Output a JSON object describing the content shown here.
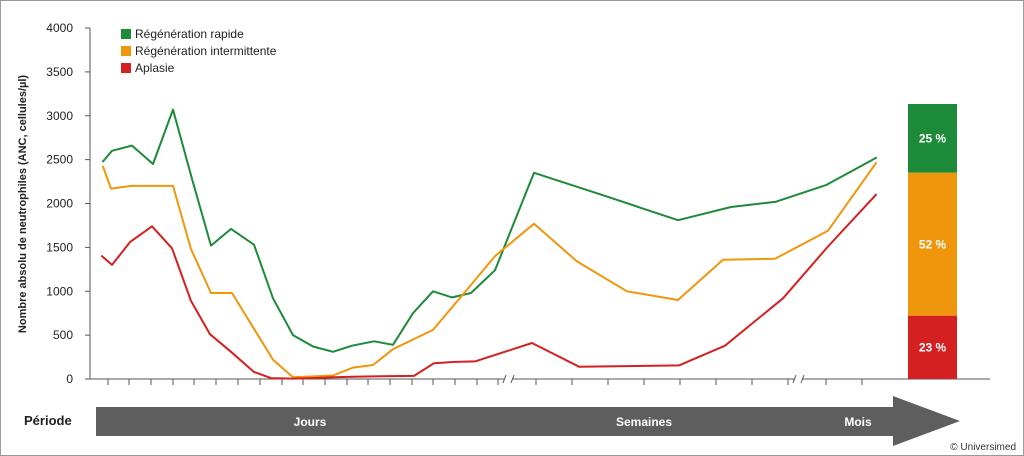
{
  "chart_data": {
    "type": "line",
    "ylabel": "Nombre absolu de neutrophiles (ANC, cellules/µl)",
    "ylim": [
      0,
      4000
    ],
    "yticks": [
      0,
      500,
      1000,
      1500,
      2000,
      2500,
      3000,
      3500,
      4000
    ],
    "grid": false,
    "legend_position": "top-left",
    "series": [
      {
        "name": "Régénération rapide",
        "color": "#1d8a3a",
        "values": [
          2480,
          2600,
          2660,
          2450,
          3070,
          2280,
          1520,
          1710,
          1530,
          920,
          500,
          370,
          310,
          380,
          430,
          390,
          750,
          1000,
          930,
          980,
          1240,
          2350,
          2090,
          1810,
          1960,
          2020,
          2210,
          2520
        ]
      },
      {
        "name": "Régénération intermittente",
        "color": "#f0960c",
        "values": [
          2420,
          2170,
          2200,
          2200,
          2200,
          1480,
          980,
          980,
          590,
          220,
          20,
          30,
          40,
          130,
          160,
          340,
          450,
          560,
          830,
          1100,
          1400,
          1770,
          1340,
          1000,
          900,
          1360,
          1370,
          1690,
          2460
        ]
      },
      {
        "name": "Aplasie",
        "color": "#d42020",
        "values": [
          1400,
          1300,
          1560,
          1740,
          1490,
          890,
          510,
          300,
          80,
          10,
          5,
          10,
          20,
          25,
          30,
          35,
          180,
          195,
          200,
          410,
          140,
          155,
          380,
          920,
          1510,
          2100
        ]
      }
    ],
    "stacked_bar": {
      "segments": [
        {
          "label": "25 %",
          "value": 25,
          "color": "#1d8a3a"
        },
        {
          "label": "52 %",
          "value": 52,
          "color": "#f0960c"
        },
        {
          "label": "23 %",
          "value": 23,
          "color": "#d42020"
        }
      ]
    },
    "period_axis": {
      "title": "Période",
      "labels": [
        "Jours",
        "Semaines",
        "Mois"
      ],
      "color": "#5e5e5e"
    }
  },
  "copyright": "© Universimed"
}
